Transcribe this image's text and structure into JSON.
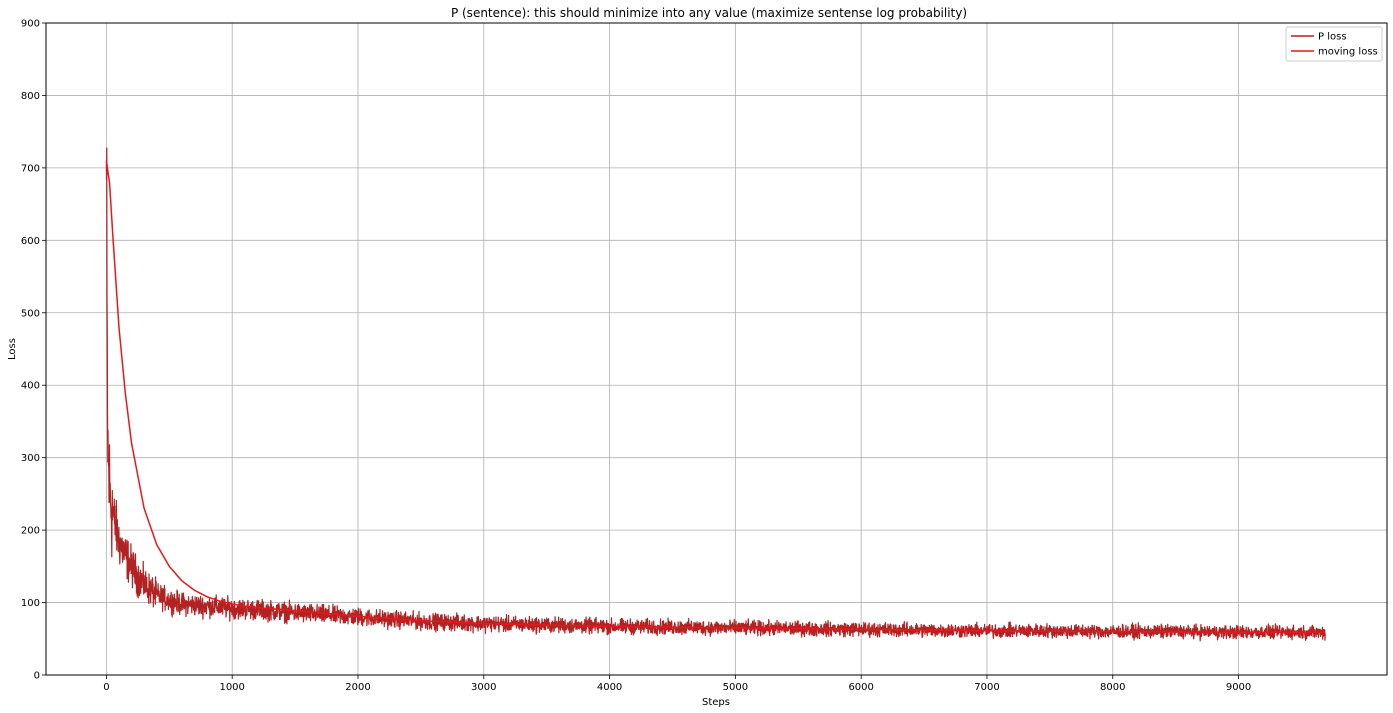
{
  "chart_data": {
    "type": "line",
    "title": "P (sentence): this should minimize into any value (maximize sentense log probability)",
    "xlabel": "Steps",
    "ylabel": "Loss",
    "xlim": [
      -480,
      10180
    ],
    "ylim": [
      0,
      900
    ],
    "xticks": [
      0,
      1000,
      2000,
      3000,
      4000,
      5000,
      6000,
      7000,
      8000,
      9000
    ],
    "yticks": [
      0,
      100,
      200,
      300,
      400,
      500,
      600,
      700,
      800,
      900
    ],
    "grid": true,
    "legend_position": "top-right",
    "series": [
      {
        "name": "P loss",
        "color": "#b22222",
        "noisy": true,
        "x": [
          0,
          5,
          10,
          15,
          20,
          30,
          40,
          60,
          80,
          100,
          150,
          200,
          250,
          300,
          400,
          500,
          600,
          800,
          1000,
          1200,
          1500,
          2000,
          2500,
          3000,
          3500,
          4000,
          4500,
          5000,
          5500,
          6000,
          6500,
          7000,
          7500,
          8000,
          8500,
          9000,
          9500,
          9690
        ],
        "y": [
          710,
          480,
          330,
          290,
          270,
          250,
          235,
          215,
          200,
          185,
          165,
          150,
          135,
          125,
          110,
          103,
          98,
          95,
          92,
          90,
          86,
          80,
          74,
          71,
          69,
          67,
          66,
          65,
          64,
          63,
          62,
          61,
          61,
          60,
          60,
          59,
          59,
          59
        ]
      },
      {
        "name": "moving loss",
        "color": "#e31a1c",
        "noisy": false,
        "x": [
          0,
          25,
          50,
          100,
          150,
          200,
          300,
          400,
          500,
          600,
          700,
          800,
          900,
          1000,
          1100,
          1200,
          1500,
          2000,
          2500,
          3000,
          4000,
          5000,
          6000,
          7000,
          8000,
          9000,
          9690
        ],
        "y": [
          710,
          680,
          610,
          480,
          390,
          320,
          230,
          180,
          150,
          130,
          117,
          108,
          102,
          98,
          95,
          93,
          89,
          81,
          75,
          71,
          67,
          65,
          63,
          61,
          60,
          59,
          59
        ]
      }
    ]
  }
}
